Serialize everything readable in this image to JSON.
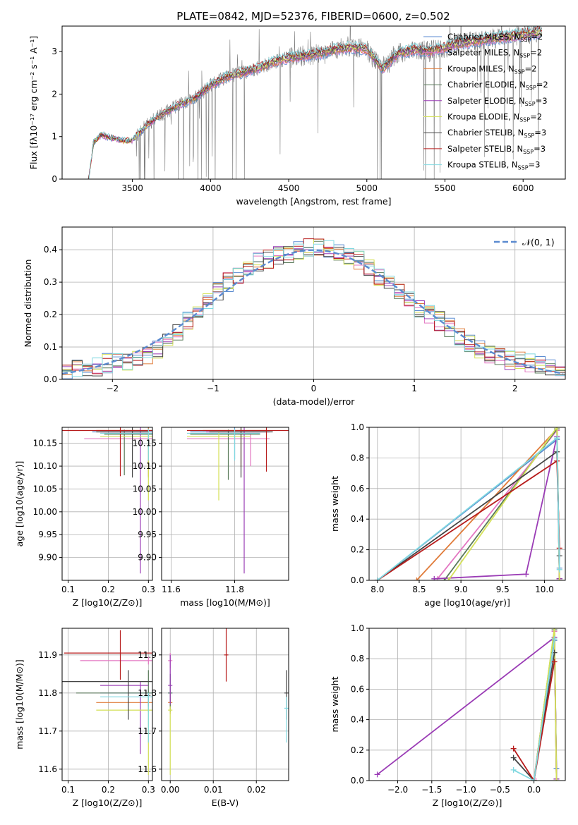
{
  "figure": {
    "title": "PLATE=0842, MJD=52376, FIBERID=0600, z=0.502",
    "colors": {
      "axes": "#000000",
      "grid": "#b0b0b0",
      "data_spectrum": "#7f7f7f",
      "gaussian": "#5b8bd0"
    }
  },
  "chart_data": [
    {
      "id": "spectrum",
      "type": "line",
      "title": "PLATE=0842, MJD=52376, FIBERID=0600, z=0.502",
      "xlabel": "wavelength [Angstrom, rest frame]",
      "ylabel": "Flux [fλ10⁻¹⁷ erg cm⁻² s⁻¹ A⁻¹]",
      "xlim": [
        3050,
        6270
      ],
      "ylim": [
        0,
        3.6
      ],
      "xticks": [
        3500,
        4000,
        4500,
        5000,
        5500,
        6000
      ],
      "yticks": [
        0,
        1,
        2,
        3
      ],
      "grid": false,
      "legend_position": "upper-right",
      "observed_anchors": {
        "x": [
          3220,
          3250,
          3300,
          3350,
          3400,
          3450,
          3500,
          3600,
          3700,
          3800,
          3900,
          4000,
          4100,
          4200,
          4300,
          4400,
          4500,
          4600,
          4700,
          4800,
          4900,
          5000,
          5100,
          5200,
          5300,
          5400,
          5500,
          5600,
          5700,
          5800,
          5900,
          6000,
          6100
        ],
        "y": [
          0.0,
          0.85,
          1.05,
          0.98,
          0.95,
          0.9,
          0.92,
          1.3,
          1.55,
          1.75,
          1.9,
          2.2,
          2.4,
          2.5,
          2.6,
          2.75,
          2.85,
          2.9,
          2.95,
          3.05,
          3.1,
          3.05,
          2.6,
          2.95,
          3.05,
          3.0,
          3.1,
          3.2,
          3.25,
          3.3,
          3.35,
          3.4,
          3.45
        ]
      },
      "series": [
        {
          "name": "Chabrier MILES, N_SSP=2",
          "color": "#5b8bd0"
        },
        {
          "name": "Salpeter MILES, N_SSP=2",
          "color": "#e377c2"
        },
        {
          "name": "Kroupa MILES, N_SSP=2",
          "color": "#e07b39"
        },
        {
          "name": "Chabrier ELODIE, N_SSP=2",
          "color": "#5a7a5a"
        },
        {
          "name": "Salpeter ELODIE, N_SSP=3",
          "color": "#9a3bb5"
        },
        {
          "name": "Kroupa ELODIE, N_SSP=2",
          "color": "#d4e157"
        },
        {
          "name": "Chabrier STELIB, N_SSP=3",
          "color": "#444444"
        },
        {
          "name": "Salpeter STELIB, N_SSP=3",
          "color": "#b71c1c"
        },
        {
          "name": "Kroupa STELIB, N_SSP=3",
          "color": "#80d8e0"
        }
      ]
    },
    {
      "id": "residuals",
      "type": "histogram",
      "xlabel": "(data-model)/error",
      "ylabel": "Normed distribution",
      "xlim": [
        -2.5,
        2.5
      ],
      "ylim": [
        0,
        0.47
      ],
      "xticks": [
        -2,
        -1,
        0,
        1,
        2
      ],
      "yticks": [
        0.0,
        0.1,
        0.2,
        0.3,
        0.4
      ],
      "grid": true,
      "legend_position": "upper-right",
      "legend": [
        "N(0,1)"
      ],
      "bin_width": 0.1,
      "hist_envelope": [
        0.03,
        0.03,
        0.035,
        0.04,
        0.05,
        0.05,
        0.05,
        0.06,
        0.07,
        0.09,
        0.12,
        0.15,
        0.18,
        0.21,
        0.24,
        0.27,
        0.3,
        0.32,
        0.34,
        0.36,
        0.37,
        0.38,
        0.39,
        0.4,
        0.41,
        0.41,
        0.4,
        0.39,
        0.38,
        0.37,
        0.35,
        0.32,
        0.3,
        0.27,
        0.25,
        0.22,
        0.2,
        0.18,
        0.16,
        0.13,
        0.11,
        0.09,
        0.08,
        0.07,
        0.06,
        0.055,
        0.05,
        0.045,
        0.04,
        0.035
      ]
    },
    {
      "id": "Z_vs_age",
      "type": "errorbar",
      "xlabel": "Z [log10(Z/Z⊙)]",
      "ylabel": "age [log10(age/yr)]",
      "xlim": [
        0.085,
        0.31
      ],
      "ylim": [
        9.85,
        10.185
      ],
      "xticks": [
        0.1,
        0.2,
        0.3
      ],
      "yticks": [
        9.9,
        9.95,
        10.0,
        10.05,
        10.1,
        10.15
      ],
      "grid": true
    },
    {
      "id": "mass_vs_age",
      "type": "errorbar",
      "xlabel": "mass [log10(M/M⊙)]",
      "ylabel": "",
      "xlim": [
        11.57,
        11.97
      ],
      "ylim": [
        9.85,
        10.185
      ],
      "xticks": [
        11.6,
        11.8
      ],
      "yticks": [
        9.9,
        9.95,
        10.0,
        10.05,
        10.1,
        10.15
      ],
      "grid": true
    },
    {
      "id": "age_vs_weight",
      "type": "line",
      "xlabel": "age [log10(age/yr)]",
      "ylabel": "mass weight",
      "xlim": [
        7.9,
        10.25
      ],
      "ylim": [
        0,
        1.0
      ],
      "xticks": [
        8.0,
        8.5,
        9.0,
        9.5,
        10.0
      ],
      "yticks": [
        0.0,
        0.2,
        0.4,
        0.6,
        0.8,
        1.0
      ],
      "grid": true
    },
    {
      "id": "Z_vs_mass",
      "type": "errorbar",
      "xlabel": "Z [log10(Z/Z⊙)]",
      "ylabel": "mass [log10(M/M⊙)]",
      "xlim": [
        0.085,
        0.31
      ],
      "ylim": [
        11.57,
        11.97
      ],
      "xticks": [
        0.1,
        0.2,
        0.3
      ],
      "yticks": [
        11.6,
        11.7,
        11.8,
        11.9
      ],
      "grid": true
    },
    {
      "id": "ebv_vs_mass",
      "type": "errorbar",
      "xlabel": "E(B-V)",
      "ylabel": "",
      "xlim": [
        -0.002,
        0.0275
      ],
      "ylim": [
        11.57,
        11.97
      ],
      "xticks": [
        0.0,
        0.01,
        0.02
      ],
      "yticks": [
        11.6,
        11.7,
        11.8,
        11.9
      ],
      "grid": true
    },
    {
      "id": "Z_vs_weight",
      "type": "line",
      "xlabel": "Z [log10(Z/Z⊙)]",
      "ylabel": "mass weight",
      "xlim": [
        -2.42,
        0.46
      ],
      "ylim": [
        0,
        1.0
      ],
      "xticks": [
        -2.0,
        -1.5,
        -1.0,
        -0.5,
        0.0
      ],
      "yticks": [
        0.0,
        0.2,
        0.4,
        0.6,
        0.8,
        1.0
      ],
      "grid": true
    }
  ]
}
